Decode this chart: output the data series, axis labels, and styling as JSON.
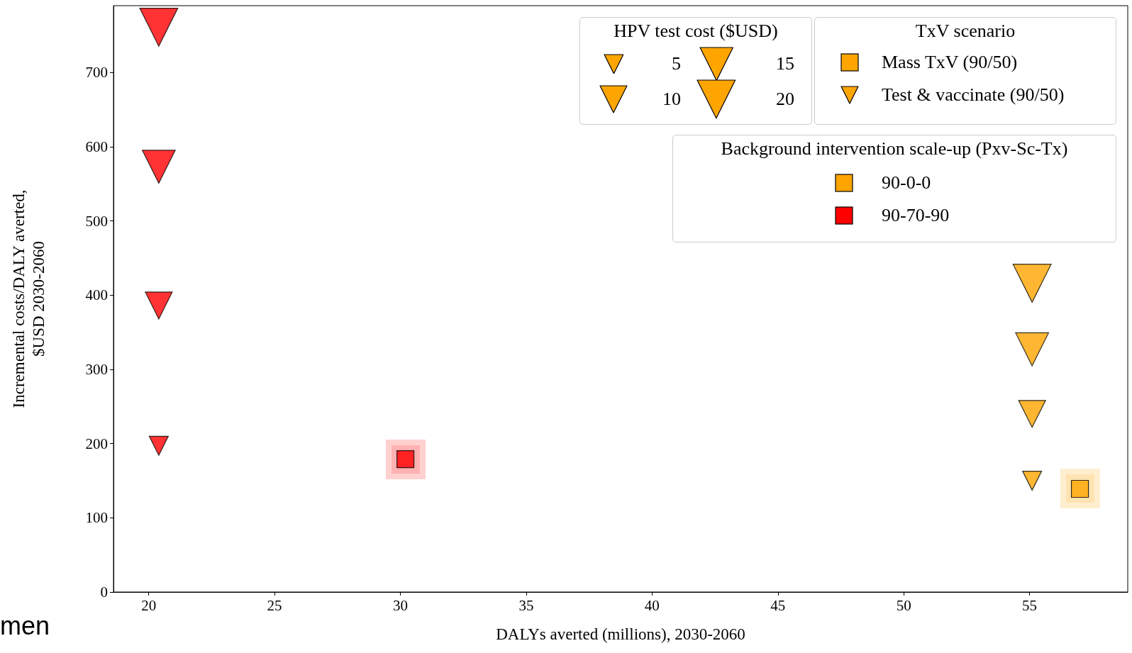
{
  "chart_data": {
    "type": "bubble",
    "xlabel": "DALYs averted (millions), 2030-2060",
    "ylabel": "Incremental costs/DALY averted,\n$USD 2030-2060",
    "xlim": [
      18.6,
      58.9
    ],
    "xticks": [
      20,
      25,
      30,
      35,
      40,
      45,
      50,
      55
    ],
    "ylim": [
      0,
      790
    ],
    "yticks": [
      0,
      100,
      200,
      300,
      400,
      500,
      600,
      700
    ],
    "grid": false,
    "legend": "top right",
    "legend_title": "HPV test cost ($USD)",
    "size_legend": [
      5,
      10,
      15,
      20
    ],
    "series": [
      {
        "color": "#ff0000",
        "marker": "triangle",
        "x": [
          20.4,
          20.4,
          20.4,
          20.4
        ],
        "values": [
          761,
          573,
          386,
          197
        ],
        "sizes": [
          20,
          15,
          10,
          5
        ]
      },
      {
        "type": "scatter",
        "color": "#ff0000",
        "marker": "square",
        "x": [
          30.2
        ],
        "values": [
          179
        ]
      },
      {
        "color": "#ffa500",
        "marker": "triangle",
        "x": [
          55.1,
          55.1,
          55.1,
          55.1
        ],
        "values": [
          416,
          327,
          240,
          150
        ],
        "sizes": [
          20,
          15,
          10,
          5
        ]
      },
      {
        "type": "scatter",
        "color": "#ffa500",
        "marker": "square",
        "x": [
          57.0
        ],
        "values": [
          139
        ]
      },
      {
        "type": "scatter",
        "name": "Mass TxV (90/50)",
        "color": "#ffa500",
        "marker": "square"
      },
      {
        "type": "scatter",
        "name": "Test & vaccinate (90/50)",
        "color": "#ffa500",
        "marker": "triangle"
      },
      {
        "type": "scatter",
        "name": "90-0-0",
        "color": "#ffa500",
        "marker": "square"
      },
      {
        "type": "scatter",
        "name": "90-70-90",
        "color": "#ff0000",
        "marker": "square"
      }
    ],
    "annotations": [
      "TxV scenario",
      "Background intervention scale-up (Pxv-Sc-Tx)",
      "men"
    ]
  }
}
